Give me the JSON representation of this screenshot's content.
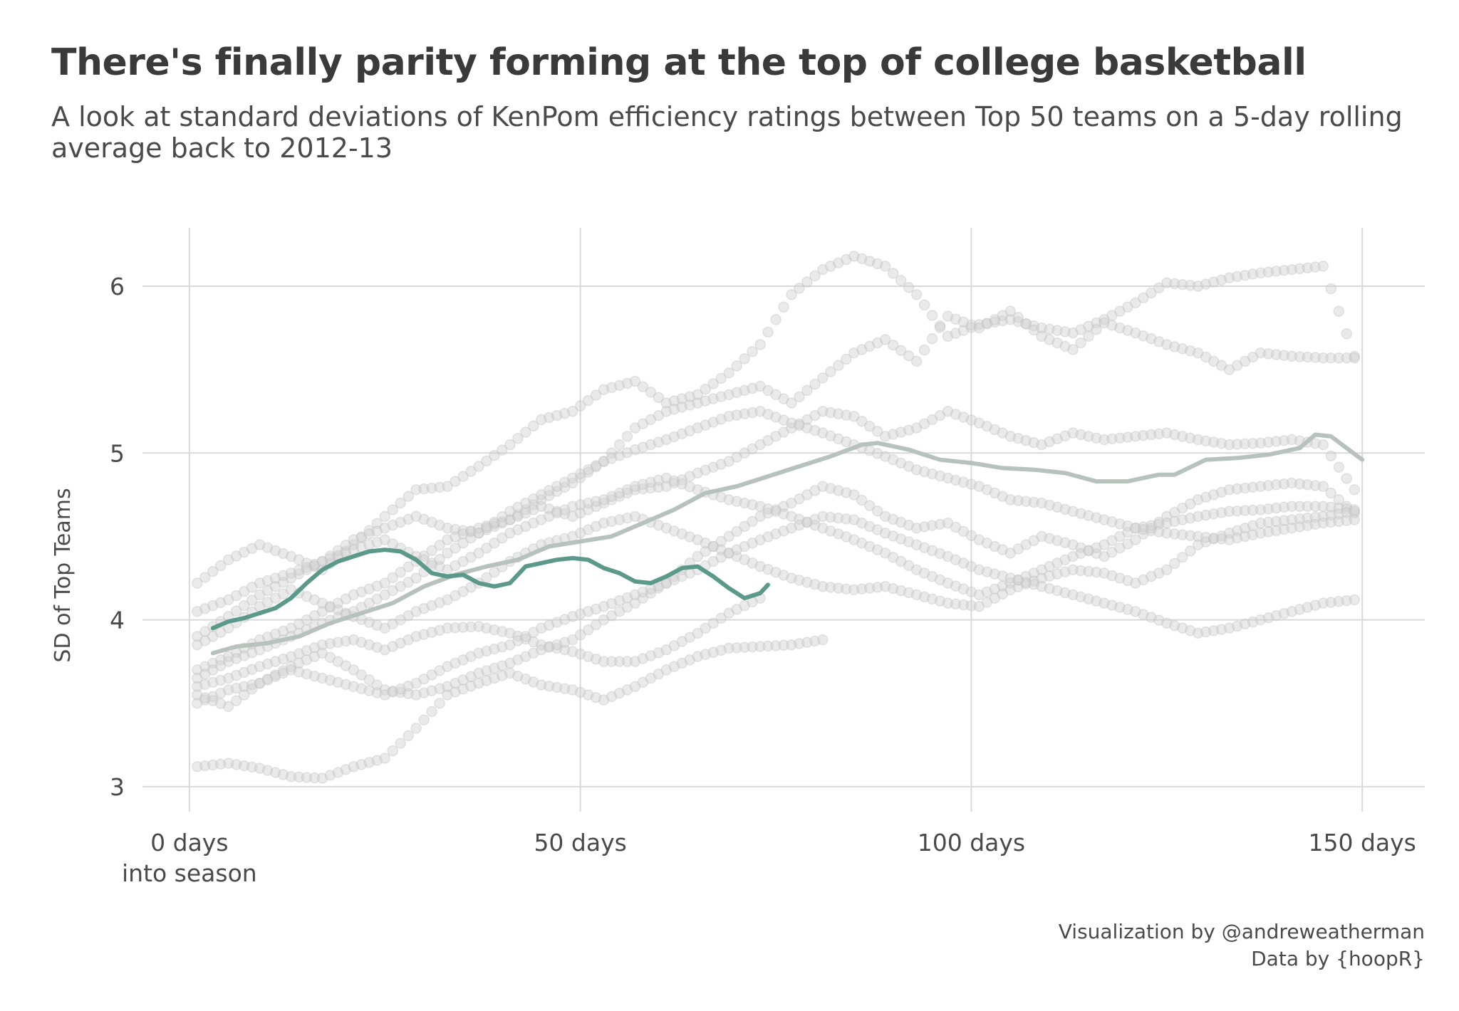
{
  "title": "There's finally parity forming at the top of college basketball",
  "subtitle": "A look at standard deviations of KenPom efficiency ratings between Top 50 teams on a 5-day rolling average back to 2012-13",
  "caption": {
    "line1": "Visualization by @andreweatherman",
    "line2": "Data by {hoopR}"
  },
  "colors": {
    "current_season": "#5b9a8b",
    "historical_average": "#b7c2bc",
    "points": "#d0d0d0",
    "grid": "#d9d9d9"
  },
  "chart_data": {
    "type": "line",
    "xlabel": "",
    "ylabel": "SD of Top Teams",
    "xlim": [
      -6,
      158
    ],
    "ylim": [
      2.85,
      6.35
    ],
    "x_ticks": [
      {
        "value": 0,
        "label": "0 days",
        "label2": "into season"
      },
      {
        "value": 50,
        "label": "50 days"
      },
      {
        "value": 100,
        "label": "100 days"
      },
      {
        "value": 150,
        "label": "150 days"
      }
    ],
    "y_ticks": [
      {
        "value": 3,
        "label": "3"
      },
      {
        "value": 4,
        "label": "4"
      },
      {
        "value": 5,
        "label": "5"
      },
      {
        "value": 6,
        "label": "6"
      }
    ],
    "grid": true,
    "legend": "none",
    "series": [
      {
        "role": "historical_average",
        "x": [
          3,
          6,
          10,
          14,
          18,
          22,
          26,
          30,
          34,
          38,
          42,
          46,
          50,
          54,
          58,
          62,
          66,
          70,
          74,
          78,
          82,
          86,
          88,
          92,
          96,
          100,
          104,
          108,
          112,
          116,
          120,
          124,
          126,
          130,
          134,
          138,
          142,
          144,
          146,
          148,
          150
        ],
        "y": [
          3.8,
          3.84,
          3.86,
          3.9,
          3.98,
          4.04,
          4.1,
          4.2,
          4.27,
          4.32,
          4.36,
          4.44,
          4.47,
          4.5,
          4.58,
          4.66,
          4.76,
          4.8,
          4.86,
          4.92,
          4.98,
          5.05,
          5.06,
          5.02,
          4.96,
          4.94,
          4.91,
          4.9,
          4.88,
          4.83,
          4.83,
          4.87,
          4.87,
          4.96,
          4.97,
          4.99,
          5.03,
          5.11,
          5.1,
          5.03,
          4.96
        ]
      },
      {
        "role": "current_season",
        "x": [
          3,
          5,
          7,
          9,
          11,
          13,
          15,
          17,
          19,
          21,
          23,
          25,
          27,
          29,
          31,
          33,
          35,
          37,
          39,
          41,
          43,
          45,
          47,
          49,
          51,
          53,
          55,
          57,
          59,
          61,
          63,
          65,
          67,
          69,
          71,
          73,
          74
        ],
        "y": [
          3.95,
          3.99,
          4.01,
          4.04,
          4.07,
          4.13,
          4.22,
          4.3,
          4.35,
          4.38,
          4.41,
          4.42,
          4.41,
          4.36,
          4.28,
          4.26,
          4.27,
          4.22,
          4.2,
          4.22,
          4.32,
          4.34,
          4.36,
          4.37,
          4.36,
          4.31,
          4.28,
          4.23,
          4.22,
          4.26,
          4.31,
          4.32,
          4.26,
          4.19,
          4.13,
          4.16,
          4.21
        ]
      },
      {
        "role": "season_points",
        "x": [
          1,
          5,
          9,
          13,
          17,
          21,
          25,
          29,
          33,
          37,
          41,
          45,
          49,
          53,
          57,
          61,
          65,
          69,
          73
        ],
        "y": [
          3.6,
          3.65,
          3.72,
          3.78,
          3.85,
          3.88,
          3.82,
          3.9,
          3.95,
          3.96,
          3.92,
          3.85,
          3.81,
          3.75,
          3.75,
          3.82,
          3.92,
          4.04,
          4.13
        ]
      },
      {
        "role": "season_points",
        "x": [
          1,
          5,
          9,
          13,
          17,
          21,
          25,
          29,
          33,
          37,
          41,
          45,
          49,
          53,
          57,
          61,
          65,
          69,
          73,
          77,
          81
        ],
        "y": [
          3.12,
          3.14,
          3.11,
          3.06,
          3.05,
          3.12,
          3.17,
          3.35,
          3.55,
          3.62,
          3.68,
          3.61,
          3.58,
          3.52,
          3.6,
          3.7,
          3.78,
          3.83,
          3.84,
          3.85,
          3.88
        ]
      },
      {
        "role": "season_points",
        "x": [
          1,
          5,
          9,
          13,
          17,
          21,
          25,
          29,
          33,
          37,
          41,
          45,
          49,
          53,
          57,
          61,
          65,
          69,
          73,
          77,
          81,
          85,
          89,
          93,
          97,
          101,
          105,
          109,
          113,
          117,
          121,
          125,
          129,
          133,
          137,
          141,
          145,
          149
        ],
        "y": [
          4.22,
          4.36,
          4.45,
          4.38,
          4.3,
          4.45,
          4.62,
          4.78,
          4.8,
          4.92,
          5.05,
          5.2,
          5.25,
          5.38,
          5.43,
          5.3,
          5.35,
          5.48,
          5.65,
          5.95,
          6.1,
          6.18,
          6.12,
          5.95,
          5.7,
          5.77,
          5.8,
          5.75,
          5.72,
          5.8,
          5.9,
          6.02,
          6.0,
          6.05,
          6.08,
          6.1,
          6.12,
          5.58
        ]
      },
      {
        "role": "season_points",
        "x": [
          1,
          5,
          9,
          13,
          17,
          21,
          25,
          29,
          33,
          37,
          41,
          45,
          49,
          53,
          57,
          61,
          65,
          69,
          73,
          77,
          81,
          85,
          89,
          93,
          97,
          101,
          105,
          109,
          113,
          117,
          121,
          125,
          129,
          133,
          137,
          141,
          145,
          149
        ],
        "y": [
          3.9,
          4.02,
          4.15,
          4.25,
          4.35,
          4.48,
          4.55,
          4.62,
          4.55,
          4.52,
          4.6,
          4.72,
          4.82,
          4.95,
          5.15,
          5.25,
          5.3,
          5.35,
          5.4,
          5.3,
          5.45,
          5.6,
          5.68,
          5.55,
          5.82,
          5.75,
          5.85,
          5.7,
          5.62,
          5.78,
          5.72,
          5.65,
          5.6,
          5.5,
          5.6,
          5.58,
          5.57,
          5.57
        ]
      },
      {
        "role": "season_points",
        "x": [
          1,
          5,
          9,
          13,
          17,
          21,
          25,
          29,
          33,
          37,
          41,
          45,
          49,
          53,
          57,
          61,
          65,
          69,
          73,
          77,
          81,
          85,
          89,
          93,
          97,
          101,
          105,
          109,
          113,
          117,
          121,
          125,
          129,
          133,
          137,
          141,
          145,
          149
        ],
        "y": [
          3.7,
          3.78,
          3.88,
          3.95,
          4.05,
          4.15,
          4.22,
          4.35,
          4.48,
          4.55,
          4.6,
          4.68,
          4.62,
          4.7,
          4.78,
          4.8,
          4.88,
          4.95,
          5.05,
          5.15,
          5.25,
          5.22,
          5.1,
          5.15,
          5.25,
          5.18,
          5.1,
          5.05,
          5.12,
          5.08,
          5.1,
          5.12,
          5.08,
          5.05,
          5.06,
          5.08,
          5.05,
          4.78
        ]
      },
      {
        "role": "season_points",
        "x": [
          1,
          5,
          9,
          13,
          17,
          21,
          25,
          29,
          33,
          37,
          41,
          45,
          49,
          53,
          57,
          61,
          65,
          69,
          73,
          77,
          81,
          85,
          89,
          93,
          97,
          101,
          105,
          109,
          113,
          117,
          121,
          125,
          129,
          133,
          137,
          141,
          145,
          149
        ],
        "y": [
          3.5,
          3.58,
          3.62,
          3.72,
          3.8,
          3.7,
          3.58,
          3.55,
          3.6,
          3.68,
          3.74,
          3.82,
          3.88,
          4.0,
          4.1,
          4.22,
          4.38,
          4.5,
          4.62,
          4.7,
          4.8,
          4.75,
          4.62,
          4.55,
          4.58,
          4.48,
          4.4,
          4.5,
          4.45,
          4.38,
          4.48,
          4.62,
          4.72,
          4.78,
          4.8,
          4.82,
          4.8,
          4.64
        ]
      },
      {
        "role": "season_points",
        "x": [
          1,
          5,
          9,
          13,
          17,
          21,
          25,
          29,
          33,
          37,
          41,
          45,
          49,
          53,
          57,
          61,
          65,
          69,
          73,
          77,
          81,
          85,
          89,
          93,
          97,
          101,
          105,
          109,
          113,
          117,
          121,
          125,
          129,
          133,
          137,
          141,
          145,
          149
        ],
        "y": [
          4.05,
          4.12,
          4.22,
          4.28,
          4.35,
          4.42,
          4.48,
          4.38,
          4.3,
          4.4,
          4.52,
          4.6,
          4.68,
          4.72,
          4.8,
          4.85,
          4.78,
          4.72,
          4.68,
          4.62,
          4.55,
          4.48,
          4.4,
          4.3,
          4.22,
          4.15,
          4.22,
          4.3,
          4.38,
          4.45,
          4.55,
          4.58,
          4.62,
          4.65,
          4.66,
          4.68,
          4.68,
          4.66
        ]
      },
      {
        "role": "season_points",
        "x": [
          1,
          5,
          9,
          13,
          17,
          21,
          25,
          29,
          33,
          37,
          41,
          45,
          49,
          53,
          57,
          61,
          65,
          69,
          73,
          77,
          81,
          85,
          89,
          93,
          97,
          101,
          105,
          109,
          113,
          117,
          121,
          125,
          129,
          133,
          137,
          141,
          145,
          149
        ],
        "y": [
          3.85,
          3.95,
          4.08,
          4.18,
          4.1,
          4.02,
          3.95,
          4.05,
          4.12,
          4.22,
          4.35,
          4.45,
          4.5,
          4.58,
          4.62,
          4.55,
          4.48,
          4.4,
          4.32,
          4.25,
          4.2,
          4.18,
          4.2,
          4.15,
          4.1,
          4.08,
          4.18,
          4.25,
          4.3,
          4.28,
          4.22,
          4.3,
          4.45,
          4.52,
          4.58,
          4.6,
          4.62,
          4.65
        ]
      },
      {
        "role": "season_points",
        "x": [
          1,
          5,
          9,
          13,
          17,
          21,
          25,
          29,
          33,
          37,
          41,
          45,
          49,
          53,
          57,
          61,
          65,
          69,
          73,
          77,
          81,
          85,
          89,
          93,
          97,
          101,
          105,
          109,
          113,
          117,
          121,
          125,
          129,
          133,
          137,
          141,
          145,
          149
        ],
        "y": [
          3.65,
          3.75,
          3.82,
          3.9,
          3.98,
          4.05,
          4.15,
          4.25,
          4.4,
          4.52,
          4.65,
          4.75,
          4.85,
          4.95,
          5.02,
          5.08,
          5.15,
          5.22,
          5.25,
          5.18,
          5.12,
          5.05,
          4.98,
          4.9,
          4.85,
          4.8,
          4.72,
          4.7,
          4.65,
          4.6,
          4.55,
          4.52,
          4.5,
          4.48,
          4.52,
          4.55,
          4.58,
          4.6
        ]
      },
      {
        "role": "season_points",
        "x": [
          1,
          5,
          9,
          13,
          17,
          21,
          25,
          29,
          33,
          37,
          41,
          45,
          49,
          53,
          57,
          61,
          65,
          69,
          73,
          77,
          81,
          85,
          89,
          93,
          97,
          101,
          105,
          109,
          113,
          117,
          121,
          125,
          129,
          133,
          137,
          141,
          145,
          149
        ],
        "y": [
          3.55,
          3.48,
          3.62,
          3.7,
          3.65,
          3.6,
          3.55,
          3.62,
          3.72,
          3.8,
          3.85,
          3.95,
          4.02,
          4.08,
          4.15,
          4.22,
          4.3,
          4.4,
          4.48,
          4.55,
          4.62,
          4.6,
          4.52,
          4.45,
          4.38,
          4.3,
          4.25,
          4.2,
          4.15,
          4.1,
          4.05,
          3.98,
          3.92,
          3.95,
          4.0,
          4.05,
          4.1,
          4.12
        ]
      }
    ]
  }
}
